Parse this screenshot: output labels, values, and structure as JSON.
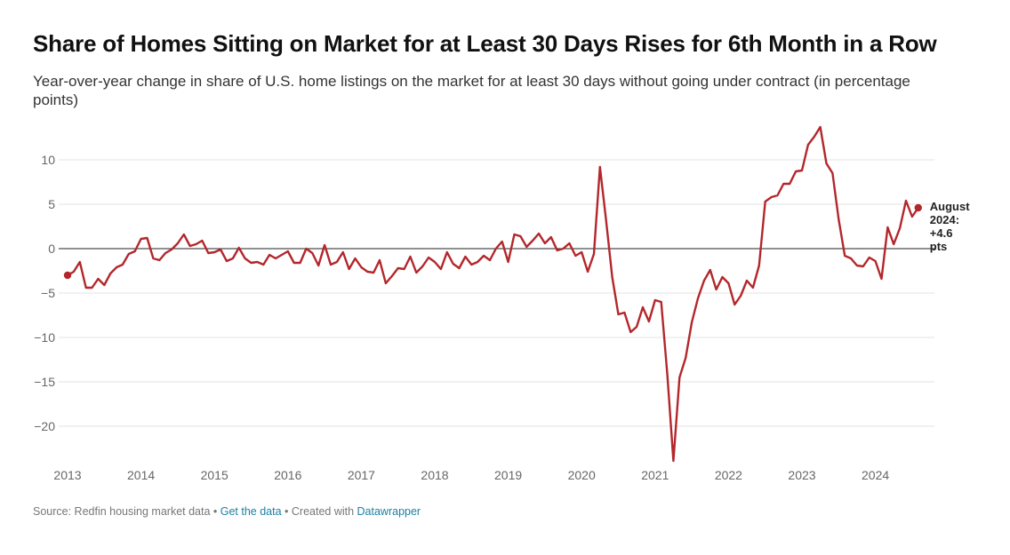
{
  "title": "Share of Homes Sitting on Market for at Least 30 Days Rises for 6th Month in a Row",
  "subtitle": "Year-over-year change in share of U.S. home listings on the market for at least 30 days without going under contract (in percentage points)",
  "footer": {
    "source": "Source: Redfin housing market data",
    "sep1": " • ",
    "link_data": "Get the data",
    "sep2": " • Created with ",
    "link_tool": "Datawrapper"
  },
  "colors": {
    "line": "#b3272c",
    "grid": "#e3e3e3",
    "zero": "#222222",
    "tick": "#666666",
    "link": "#1d81a2"
  },
  "chart_data": {
    "type": "line",
    "title": "Share of Homes Sitting on Market for at Least 30 Days Rises for 6th Month in a Row",
    "xlabel": "",
    "ylabel": "",
    "ylim": [
      -24,
      14
    ],
    "xlim": [
      "2013-01",
      "2024-08"
    ],
    "y_ticks": [
      10,
      5,
      0,
      -5,
      -10,
      -15,
      -20
    ],
    "y_tick_labels": [
      "10",
      "5",
      "0",
      "−5",
      "−10",
      "−15",
      "−20"
    ],
    "x_ticks": [
      "2013",
      "2014",
      "2015",
      "2016",
      "2017",
      "2018",
      "2019",
      "2020",
      "2021",
      "2022",
      "2023",
      "2024"
    ],
    "grid": true,
    "legend": "none",
    "series": [
      {
        "start": "2013-01",
        "frequency": "monthly",
        "values": [
          -3.0,
          -2.6,
          -1.5,
          -4.4,
          -4.4,
          -3.4,
          -4.1,
          -2.8,
          -2.1,
          -1.8,
          -0.6,
          -0.3,
          1.1,
          1.2,
          -1.1,
          -1.3,
          -0.5,
          -0.1,
          0.6,
          1.6,
          0.3,
          0.5,
          0.9,
          -0.5,
          -0.4,
          -0.1,
          -1.4,
          -1.1,
          0.1,
          -1.1,
          -1.6,
          -1.5,
          -1.8,
          -0.7,
          -1.1,
          -0.7,
          -0.3,
          -1.6,
          -1.6,
          0.0,
          -0.5,
          -1.9,
          0.4,
          -1.8,
          -1.5,
          -0.4,
          -2.3,
          -1.1,
          -2.1,
          -2.6,
          -2.7,
          -1.3,
          -3.9,
          -3.1,
          -2.2,
          -2.3,
          -0.9,
          -2.7,
          -2.0,
          -1.0,
          -1.5,
          -2.3,
          -0.4,
          -1.7,
          -2.2,
          -0.9,
          -1.8,
          -1.5,
          -0.8,
          -1.3,
          0.0,
          0.8,
          -1.5,
          1.6,
          1.4,
          0.2,
          0.9,
          1.7,
          0.6,
          1.3,
          -0.2,
          0.0,
          0.6,
          -0.8,
          -0.4,
          -2.6,
          -0.6,
          9.2,
          3.2,
          -3.2,
          -7.4,
          -7.2,
          -9.4,
          -8.8,
          -6.6,
          -8.2,
          -5.8,
          -6.0,
          -14.2,
          -23.9,
          -14.5,
          -12.3,
          -8.3,
          -5.6,
          -3.6,
          -2.4,
          -4.6,
          -3.2,
          -3.9,
          -6.3,
          -5.3,
          -3.6,
          -4.4,
          -1.9,
          5.3,
          5.8,
          6.0,
          7.3,
          7.3,
          8.7,
          8.8,
          11.7,
          12.6,
          13.7,
          9.6,
          8.5,
          3.3,
          -0.8,
          -1.1,
          -1.9,
          -2.0,
          -1.0,
          -1.4,
          -3.4,
          2.4,
          0.5,
          2.3,
          5.4,
          3.6,
          4.6
        ]
      }
    ],
    "annotations": [
      {
        "at": "2024-08",
        "value": 4.6,
        "lines": [
          "August",
          "2024:",
          "+4.6",
          "pts"
        ]
      }
    ]
  }
}
